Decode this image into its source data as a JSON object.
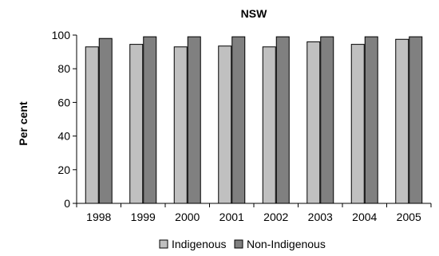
{
  "chart_data": {
    "type": "bar",
    "title": "NSW",
    "xlabel": "",
    "ylabel": "Per cent",
    "categories": [
      "1998",
      "1999",
      "2000",
      "2001",
      "2002",
      "2003",
      "2004",
      "2005"
    ],
    "series": [
      {
        "name": "Indigenous",
        "color": "#c0c0c0",
        "values": [
          93,
          94.5,
          93,
          93.5,
          93,
          96,
          94.5,
          97.5
        ]
      },
      {
        "name": "Non-Indigenous",
        "color": "#808080",
        "values": [
          98,
          99,
          99,
          99,
          99,
          99,
          99,
          99
        ]
      }
    ],
    "ylim": [
      0,
      100
    ],
    "yticks": [
      "0",
      "20",
      "40",
      "60",
      "80",
      "100"
    ],
    "grid": false,
    "legend_position": "bottom"
  }
}
